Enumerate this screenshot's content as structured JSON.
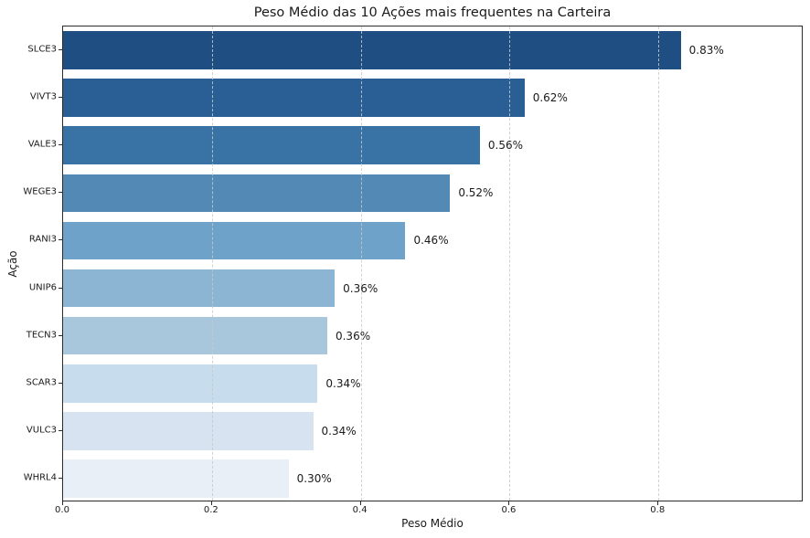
{
  "chart_data": {
    "type": "bar",
    "orientation": "horizontal",
    "title": "Peso Médio das 10 Ações mais frequentes na Carteira",
    "xlabel": "Peso Médio",
    "ylabel": "Ação",
    "categories": [
      "SLCE3",
      "VIVT3",
      "VALE3",
      "WEGE3",
      "RANI3",
      "UNIP6",
      "TECN3",
      "SCAR3",
      "VULC3",
      "WHRL4"
    ],
    "values": [
      0.83,
      0.62,
      0.56,
      0.52,
      0.46,
      0.365,
      0.355,
      0.342,
      0.336,
      0.303
    ],
    "value_labels": [
      "0.83%",
      "0.62%",
      "0.56%",
      "0.52%",
      "0.46%",
      "0.36%",
      "0.36%",
      "0.34%",
      "0.34%",
      "0.30%"
    ],
    "bar_colors": [
      "#1f4e82",
      "#2a5f96",
      "#3973a5",
      "#528ab5",
      "#6ea2c8",
      "#8bb5d3",
      "#a8c7dd",
      "#c7dcec",
      "#d7e3f0",
      "#e9eff7"
    ],
    "xticks": [
      0.0,
      0.2,
      0.4,
      0.6,
      0.8
    ],
    "xtick_labels": [
      "0.0",
      "0.2",
      "0.4",
      "0.6",
      "0.8"
    ],
    "xlim": [
      0,
      0.995
    ],
    "grid": "vertical-dashed",
    "legend": "none",
    "background_color": "#ffffff",
    "spine_color": "#2b2b2b"
  }
}
